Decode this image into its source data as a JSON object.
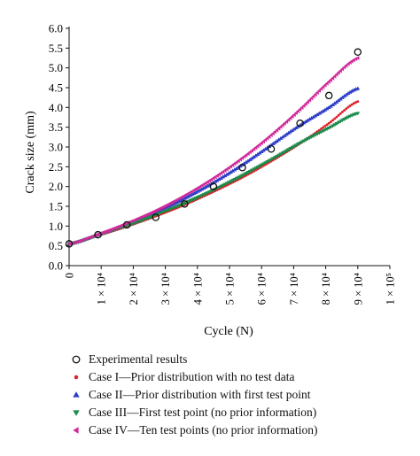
{
  "chart_data": {
    "type": "scatter",
    "xlabel": "Cycle",
    "xlabel_var": "(N)",
    "ylabel": "Crack size (mm)",
    "xlim": [
      0,
      100000
    ],
    "ylim": [
      0,
      6.0
    ],
    "x_ticks": [
      {
        "value": 0,
        "label": "0"
      },
      {
        "value": 10000,
        "label": "1 × 10⁴"
      },
      {
        "value": 20000,
        "label": "2 × 10⁴"
      },
      {
        "value": 30000,
        "label": "3 × 10⁴"
      },
      {
        "value": 40000,
        "label": "4 × 10⁴"
      },
      {
        "value": 50000,
        "label": "5 × 10⁴"
      },
      {
        "value": 60000,
        "label": "6 × 10⁴"
      },
      {
        "value": 70000,
        "label": "7 × 10⁴"
      },
      {
        "value": 80000,
        "label": "8 × 10⁴"
      },
      {
        "value": 90000,
        "label": "9 × 10⁴"
      },
      {
        "value": 100000,
        "label": "1 × 10⁵"
      }
    ],
    "y_ticks": [
      "0.0",
      "0.5",
      "1.0",
      "1.5",
      "2.0",
      "2.5",
      "3.0",
      "3.5",
      "4.0",
      "4.5",
      "5.0",
      "5.5",
      "6.0"
    ],
    "grid": false,
    "legend_position": "bottom",
    "series": [
      {
        "name": "Experimental results",
        "marker": "open-circle",
        "color": "#111111",
        "x": [
          0,
          9000,
          18000,
          27000,
          36000,
          45000,
          54000,
          63000,
          72000,
          81000,
          90000
        ],
        "y": [
          0.55,
          0.78,
          1.03,
          1.22,
          1.56,
          2.0,
          2.48,
          2.95,
          3.6,
          4.3,
          5.4
        ]
      },
      {
        "name": "Case I—Prior distribution with no test data",
        "marker": "dot",
        "color": "#e0202a",
        "x": [
          0,
          9000,
          18000,
          27000,
          36000,
          45000,
          54000,
          63000,
          72000,
          81000,
          90000
        ],
        "y": [
          0.55,
          0.76,
          0.99,
          1.25,
          1.54,
          1.87,
          2.23,
          2.64,
          3.09,
          3.6,
          4.15
        ]
      },
      {
        "name": "Case II—Prior distribution with first test point",
        "marker": "triangle-up",
        "color": "#2a3cc8",
        "x": [
          0,
          9000,
          18000,
          27000,
          36000,
          45000,
          54000,
          63000,
          72000,
          81000,
          90000
        ],
        "y": [
          0.55,
          0.78,
          1.04,
          1.35,
          1.7,
          2.1,
          2.55,
          3.05,
          3.55,
          4.0,
          4.48
        ]
      },
      {
        "name": "Case III—First test point (no prior information)",
        "marker": "triangle-down",
        "color": "#1b8a4a",
        "x": [
          0,
          9000,
          18000,
          27000,
          36000,
          45000,
          54000,
          63000,
          72000,
          81000,
          90000
        ],
        "y": [
          0.55,
          0.77,
          1.01,
          1.28,
          1.58,
          1.91,
          2.28,
          2.68,
          3.1,
          3.48,
          3.85
        ]
      },
      {
        "name": "Case IV—Ten test points (no prior information)",
        "marker": "triangle-left",
        "color": "#d02a9a",
        "x": [
          0,
          9000,
          18000,
          27000,
          36000,
          45000,
          54000,
          63000,
          72000,
          81000,
          90000
        ],
        "y": [
          0.55,
          0.79,
          1.07,
          1.39,
          1.77,
          2.21,
          2.72,
          3.3,
          3.95,
          4.65,
          5.25
        ]
      }
    ]
  }
}
